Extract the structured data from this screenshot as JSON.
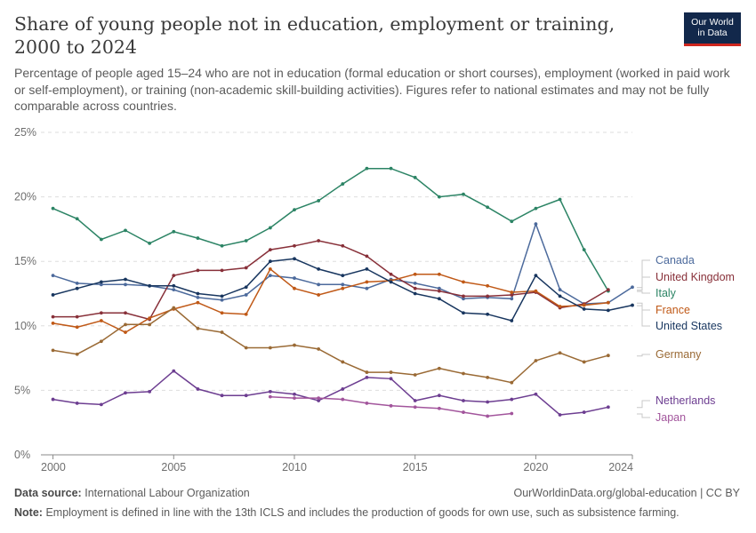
{
  "title": "Share of young people not in education, employment or training, 2000 to 2024",
  "subtitle": "Percentage of people aged 15–24 who are not in education (formal education or short courses), employment (worked in paid work or self-employment), or training (non-academic skill-building activities). Figures refer to national estimates and may not be fully comparable across countries.",
  "logo": {
    "line1": "Our World",
    "line2": "in Data",
    "colors": {
      "background": "#12284b",
      "accent": "#ce261e"
    }
  },
  "footer": {
    "source_label": "Data source:",
    "source_text": "International Labour Organization",
    "url_text": "OurWorldinData.org/global-education | CC BY",
    "note_label": "Note:",
    "note_text": "Employment is defined in line with the 13th ICLS and includes the production of goods for own use, such as subsistence farming."
  },
  "chart_data": {
    "type": "line",
    "x_ticks": [
      "2000",
      "2005",
      "2010",
      "2015",
      "2020",
      "2024"
    ],
    "y_ticks": [
      "0%",
      "5%",
      "10%",
      "15%",
      "20%",
      "25%"
    ],
    "xlim": [
      1999.5,
      2024
    ],
    "ylim": [
      0,
      25
    ],
    "grid": "horizontal dashed",
    "legend": "right, labels at line ends",
    "series": [
      {
        "name": "Italy",
        "color": "#2c8465",
        "points": [
          [
            2000,
            19.1
          ],
          [
            2001,
            18.3
          ],
          [
            2002,
            16.7
          ],
          [
            2003,
            17.4
          ],
          [
            2004,
            16.4
          ],
          [
            2005,
            17.3
          ],
          [
            2006,
            16.8
          ],
          [
            2007,
            16.2
          ],
          [
            2008,
            16.6
          ],
          [
            2009,
            17.6
          ],
          [
            2010,
            19.0
          ],
          [
            2011,
            19.7
          ],
          [
            2012,
            21.0
          ],
          [
            2013,
            22.2
          ],
          [
            2014,
            22.2
          ],
          [
            2015,
            21.5
          ],
          [
            2016,
            20.0
          ],
          [
            2017,
            20.2
          ],
          [
            2018,
            19.2
          ],
          [
            2019,
            18.1
          ],
          [
            2020,
            19.1
          ],
          [
            2021,
            19.8
          ],
          [
            2022,
            15.9
          ],
          [
            2023,
            12.7
          ]
        ]
      },
      {
        "name": "Canada",
        "color": "#4c6a9c",
        "points": [
          [
            2000,
            13.9
          ],
          [
            2001,
            13.3
          ],
          [
            2002,
            13.2
          ],
          [
            2003,
            13.2
          ],
          [
            2004,
            13.1
          ],
          [
            2005,
            12.8
          ],
          [
            2006,
            12.2
          ],
          [
            2007,
            12.0
          ],
          [
            2008,
            12.4
          ],
          [
            2009,
            13.9
          ],
          [
            2010,
            13.7
          ],
          [
            2011,
            13.2
          ],
          [
            2012,
            13.2
          ],
          [
            2013,
            12.9
          ],
          [
            2014,
            13.6
          ],
          [
            2015,
            13.3
          ],
          [
            2016,
            12.9
          ],
          [
            2017,
            12.1
          ],
          [
            2018,
            12.2
          ],
          [
            2019,
            12.1
          ],
          [
            2020,
            17.9
          ],
          [
            2021,
            12.8
          ],
          [
            2022,
            11.7
          ],
          [
            2023,
            11.8
          ],
          [
            2024,
            13.0
          ]
        ]
      },
      {
        "name": "United Kingdom",
        "color": "#883039",
        "points": [
          [
            2000,
            10.7
          ],
          [
            2001,
            10.7
          ],
          [
            2002,
            11.0
          ],
          [
            2003,
            11.0
          ],
          [
            2004,
            10.5
          ],
          [
            2005,
            13.9
          ],
          [
            2006,
            14.3
          ],
          [
            2007,
            14.3
          ],
          [
            2008,
            14.5
          ],
          [
            2009,
            15.9
          ],
          [
            2010,
            16.2
          ],
          [
            2011,
            16.6
          ],
          [
            2012,
            16.2
          ],
          [
            2013,
            15.4
          ],
          [
            2014,
            14.0
          ],
          [
            2015,
            12.9
          ],
          [
            2016,
            12.7
          ],
          [
            2017,
            12.3
          ],
          [
            2018,
            12.3
          ],
          [
            2019,
            12.4
          ],
          [
            2020,
            12.6
          ],
          [
            2021,
            11.4
          ],
          [
            2022,
            11.7
          ],
          [
            2023,
            12.8
          ]
        ]
      },
      {
        "name": "France",
        "color": "#c05917",
        "points": [
          [
            2000,
            10.2
          ],
          [
            2001,
            9.9
          ],
          [
            2002,
            10.4
          ],
          [
            2003,
            9.5
          ],
          [
            2004,
            10.6
          ],
          [
            2005,
            11.3
          ],
          [
            2006,
            11.8
          ],
          [
            2007,
            11.0
          ],
          [
            2008,
            10.9
          ],
          [
            2009,
            14.4
          ],
          [
            2010,
            12.9
          ],
          [
            2011,
            12.4
          ],
          [
            2012,
            12.9
          ],
          [
            2013,
            13.4
          ],
          [
            2014,
            13.5
          ],
          [
            2015,
            14.0
          ],
          [
            2016,
            14.0
          ],
          [
            2017,
            13.4
          ],
          [
            2018,
            13.1
          ],
          [
            2019,
            12.6
          ],
          [
            2020,
            12.7
          ],
          [
            2021,
            11.5
          ],
          [
            2022,
            11.6
          ],
          [
            2023,
            11.8
          ]
        ]
      },
      {
        "name": "United States",
        "color": "#18365f",
        "points": [
          [
            2000,
            12.4
          ],
          [
            2001,
            12.9
          ],
          [
            2002,
            13.4
          ],
          [
            2003,
            13.6
          ],
          [
            2004,
            13.1
          ],
          [
            2005,
            13.1
          ],
          [
            2006,
            12.5
          ],
          [
            2007,
            12.3
          ],
          [
            2008,
            13.0
          ],
          [
            2009,
            15.0
          ],
          [
            2010,
            15.2
          ],
          [
            2011,
            14.4
          ],
          [
            2012,
            13.9
          ],
          [
            2013,
            14.4
          ],
          [
            2014,
            13.4
          ],
          [
            2015,
            12.5
          ],
          [
            2016,
            12.1
          ],
          [
            2017,
            11.0
          ],
          [
            2018,
            10.9
          ],
          [
            2019,
            10.4
          ],
          [
            2020,
            13.9
          ],
          [
            2021,
            12.3
          ],
          [
            2022,
            11.3
          ],
          [
            2023,
            11.2
          ],
          [
            2024,
            11.6
          ]
        ]
      },
      {
        "name": "Germany",
        "color": "#9a6a35",
        "points": [
          [
            2000,
            8.1
          ],
          [
            2001,
            7.8
          ],
          [
            2002,
            8.8
          ],
          [
            2003,
            10.1
          ],
          [
            2004,
            10.1
          ],
          [
            2005,
            11.4
          ],
          [
            2006,
            9.8
          ],
          [
            2007,
            9.5
          ],
          [
            2008,
            8.3
          ],
          [
            2009,
            8.3
          ],
          [
            2010,
            8.5
          ],
          [
            2011,
            8.2
          ],
          [
            2012,
            7.2
          ],
          [
            2013,
            6.4
          ],
          [
            2014,
            6.4
          ],
          [
            2015,
            6.2
          ],
          [
            2016,
            6.7
          ],
          [
            2017,
            6.3
          ],
          [
            2018,
            6.0
          ],
          [
            2019,
            5.6
          ],
          [
            2020,
            7.3
          ],
          [
            2021,
            7.9
          ],
          [
            2022,
            7.2
          ],
          [
            2023,
            7.7
          ]
        ]
      },
      {
        "name": "Netherlands",
        "color": "#6d3e91",
        "points": [
          [
            2000,
            4.3
          ],
          [
            2001,
            4.0
          ],
          [
            2002,
            3.9
          ],
          [
            2003,
            4.8
          ],
          [
            2004,
            4.9
          ],
          [
            2005,
            6.5
          ],
          [
            2006,
            5.1
          ],
          [
            2007,
            4.6
          ],
          [
            2008,
            4.6
          ],
          [
            2009,
            4.9
          ],
          [
            2010,
            4.7
          ],
          [
            2011,
            4.2
          ],
          [
            2012,
            5.1
          ],
          [
            2013,
            6.0
          ],
          [
            2014,
            5.9
          ],
          [
            2015,
            4.2
          ],
          [
            2016,
            4.6
          ],
          [
            2017,
            4.2
          ],
          [
            2018,
            4.1
          ],
          [
            2019,
            4.3
          ],
          [
            2020,
            4.7
          ],
          [
            2021,
            3.1
          ],
          [
            2022,
            3.3
          ],
          [
            2023,
            3.7
          ]
        ]
      },
      {
        "name": "Japan",
        "color": "#a2559c",
        "points": [
          [
            2009,
            4.5
          ],
          [
            2010,
            4.4
          ],
          [
            2011,
            4.4
          ],
          [
            2012,
            4.3
          ],
          [
            2013,
            4.0
          ],
          [
            2014,
            3.8
          ],
          [
            2015,
            3.7
          ],
          [
            2016,
            3.6
          ],
          [
            2017,
            3.3
          ],
          [
            2018,
            3.0
          ],
          [
            2019,
            3.2
          ]
        ]
      }
    ],
    "labels": [
      {
        "series": "Canada",
        "text": "Canada"
      },
      {
        "series": "United Kingdom",
        "text": "United Kingdom"
      },
      {
        "series": "Italy",
        "text": "Italy"
      },
      {
        "series": "France",
        "text": "France"
      },
      {
        "series": "United States",
        "text": "United States"
      },
      {
        "series": "Germany",
        "text": "Germany"
      },
      {
        "series": "Netherlands",
        "text": "Netherlands"
      },
      {
        "series": "Japan",
        "text": "Japan"
      }
    ]
  }
}
